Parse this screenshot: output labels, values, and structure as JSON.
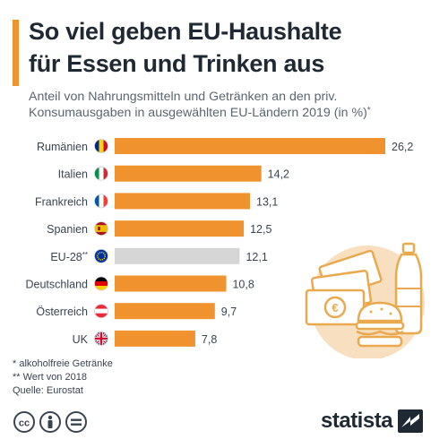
{
  "header": {
    "title_line1": "So viel geben EU-Haushalte",
    "title_line2": "für Essen und Trinken aus",
    "subtitle_line1": "Anteil von Nahrungsmitteln und Getränken an den priv.",
    "subtitle_line2": "Konsumausgaben in ausgewählten EU-Ländern 2019 (in %)",
    "subtitle_mark": "*"
  },
  "chart_data": {
    "type": "bar",
    "orientation": "horizontal",
    "categories": [
      "Rumänien",
      "Italien",
      "Frankreich",
      "Spanien",
      "EU-28",
      "Deutschland",
      "Österreich",
      "UK"
    ],
    "category_marks": [
      "",
      "",
      "",
      "",
      "**",
      "",
      "",
      ""
    ],
    "values": [
      26.2,
      14.2,
      13.1,
      12.5,
      12.1,
      10.8,
      9.7,
      7.8
    ],
    "value_labels": [
      "26,2",
      "14,2",
      "13,1",
      "12,5",
      "12,1",
      "10,8",
      "9,7",
      "7,8"
    ],
    "xlim": [
      0,
      26.2
    ],
    "highlight_category": "EU-28",
    "grid": false,
    "legend": "none"
  },
  "flags": [
    "romania",
    "italy",
    "france",
    "spain",
    "eu",
    "germany",
    "austria",
    "uk"
  ],
  "colors": {
    "accent": "#f0932e",
    "bar": "#f0932e",
    "bar_highlight": "#d6d6d6",
    "title": "#1f2933",
    "text": "#3a4450",
    "illustration": "#f7dfbf"
  },
  "footnotes": {
    "line1": "*   alkoholfreie Getränke",
    "line2": "** Wert von 2018",
    "line3": "Quelle: Eurostat"
  },
  "branding": {
    "logo_text": "statista",
    "license_icons": [
      "cc-icon",
      "by-icon",
      "nd-icon"
    ]
  }
}
